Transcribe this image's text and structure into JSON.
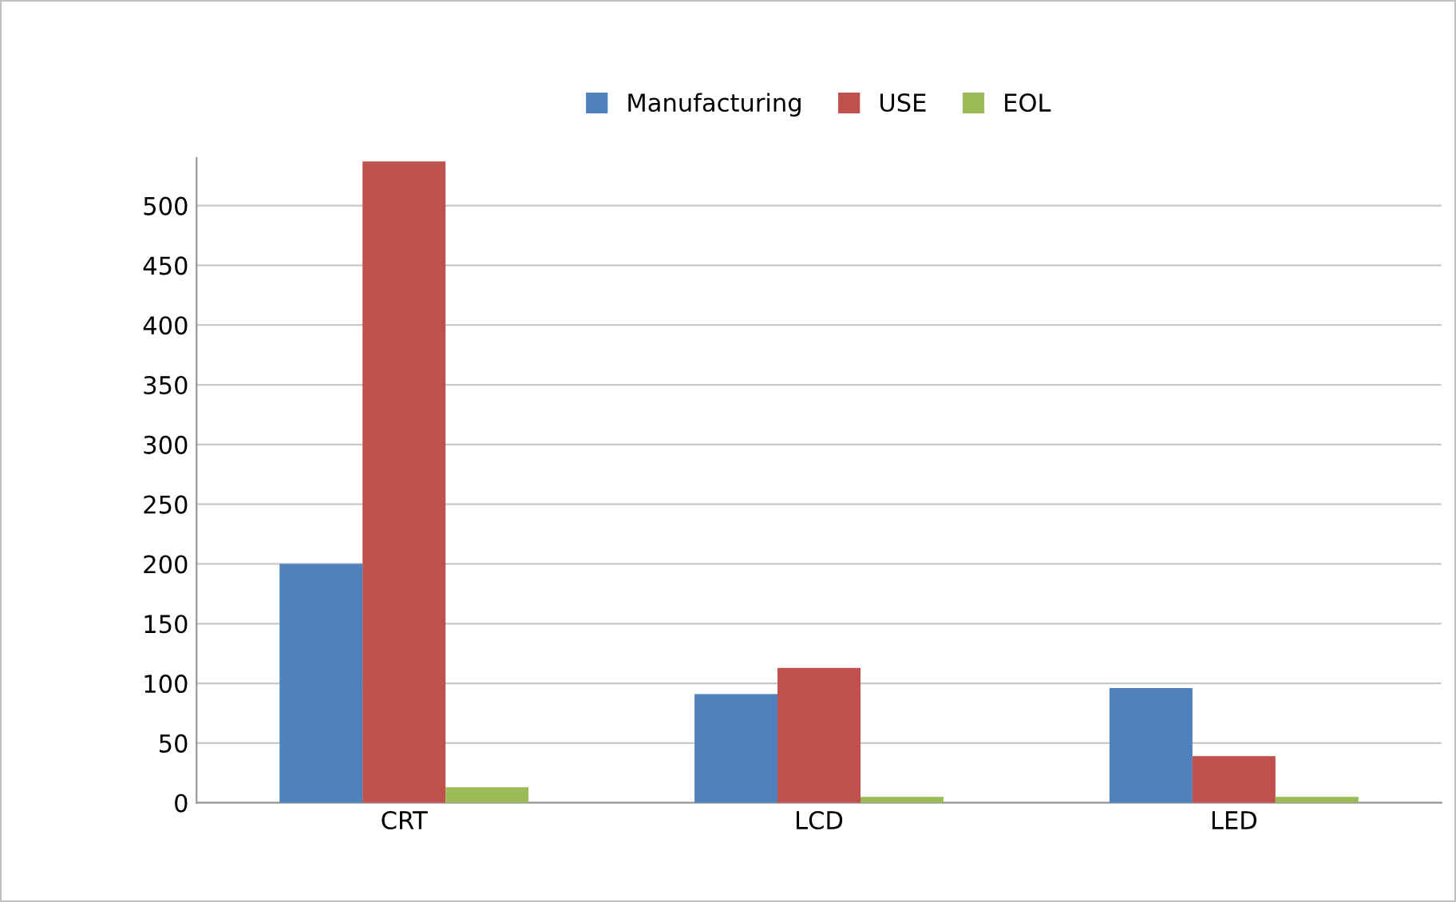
{
  "chart_data": {
    "type": "bar",
    "categories": [
      "CRT",
      "LCD",
      "LED"
    ],
    "series": [
      {
        "name": "Manufacturing",
        "color": "#4f81bd",
        "values": [
          200,
          91,
          96
        ]
      },
      {
        "name": "USE",
        "color": "#c0504d",
        "values": [
          537,
          113,
          39
        ]
      },
      {
        "name": "EOL",
        "color": "#9bbb59",
        "values": [
          13,
          5,
          5
        ]
      }
    ],
    "ylim": [
      0,
      540
    ],
    "yticks": [
      0,
      50,
      100,
      150,
      200,
      250,
      300,
      350,
      400,
      450,
      500
    ],
    "grid": "y",
    "legend": "top"
  }
}
